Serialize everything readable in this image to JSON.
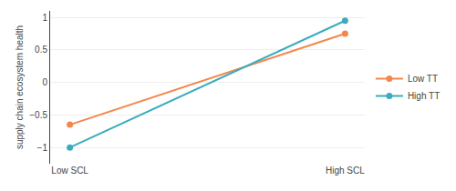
{
  "chart_data": {
    "type": "line",
    "categories": [
      "Low SCL",
      "High SCL"
    ],
    "series": [
      {
        "name": "Low TT",
        "color": "#F4874B",
        "marker": "circle",
        "values": [
          -0.65,
          0.75
        ]
      },
      {
        "name": "High TT",
        "color": "#3AACBE",
        "marker": "circle",
        "values": [
          -1.0,
          0.95
        ]
      }
    ],
    "ylabel": "supply chain ecosystem health",
    "ylim": [
      -1.25,
      1.1
    ],
    "yticks": [
      -1,
      -0.5,
      0,
      0.5,
      1
    ],
    "grid": true,
    "legend": "right"
  }
}
